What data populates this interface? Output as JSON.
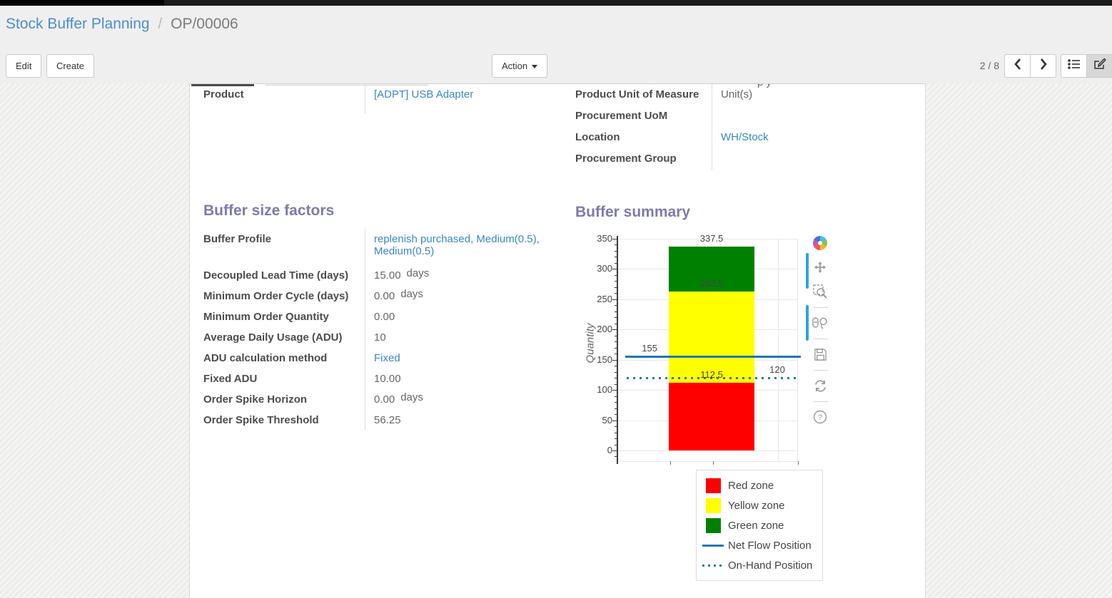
{
  "breadcrumb": {
    "parent": "Stock Buffer Planning",
    "separator": "/",
    "current": "OP/00006"
  },
  "toolbar": {
    "edit_label": "Edit",
    "create_label": "Create",
    "action_label": "Action"
  },
  "pager": {
    "text": "2 / 8",
    "prev_icon": "chevron-left-icon",
    "next_icon": "chevron-right-icon"
  },
  "view_switcher": {
    "list_icon": "list-view-icon",
    "form_icon": "form-view-icon",
    "active": "form"
  },
  "form": {
    "left_rows": [
      {
        "label": "Product",
        "value": "[ADPT] USB Adapter",
        "link": true
      }
    ],
    "right_rows": [
      {
        "label": "Product Unit of Measure",
        "value": "Unit(s)",
        "link": false
      },
      {
        "label": "Procurement UoM",
        "value": "",
        "link": false
      },
      {
        "label": "Location",
        "value": "WH/Stock",
        "link": true
      },
      {
        "label": "Procurement Group",
        "value": "",
        "link": false
      }
    ],
    "factors": {
      "heading": "Buffer size factors",
      "rows": [
        {
          "label": "Buffer Profile",
          "value": "replenish purchased, Medium(0.5), Medium(0.5)",
          "link": true
        },
        {
          "label": "Decoupled Lead Time (days)",
          "value": "15.00",
          "suffix": "days"
        },
        {
          "label": "Minimum Order Cycle (days)",
          "value": "0.00",
          "suffix": "days"
        },
        {
          "label": "Minimum Order Quantity",
          "value": "0.00"
        },
        {
          "label": "Average Daily Usage (ADU)",
          "value": "10"
        },
        {
          "label": "ADU calculation method",
          "value": "Fixed",
          "link": true
        },
        {
          "label": "Fixed ADU",
          "value": "10.00"
        },
        {
          "label": "Order Spike Horizon",
          "value": "0.00",
          "suffix": "days"
        },
        {
          "label": "Order Spike Threshold",
          "value": "56.25"
        }
      ]
    },
    "summary_heading": "Buffer summary"
  },
  "chart_data": {
    "type": "bar",
    "title": "Buffer summary",
    "xlabel": "",
    "ylabel": "Quantity",
    "ylim": [
      0,
      350
    ],
    "yticks": [
      0,
      50,
      100,
      150,
      200,
      250,
      300,
      350
    ],
    "minor_tick_step": 10,
    "grid": true,
    "stacked": true,
    "categories": [
      ""
    ],
    "series": [
      {
        "name": "Red zone",
        "color": "#ff0000",
        "values": [
          112.5
        ]
      },
      {
        "name": "Yellow zone",
        "color": "#ffff00",
        "values": [
          150
        ]
      },
      {
        "name": "Green zone",
        "color": "#008000",
        "values": [
          75
        ]
      }
    ],
    "cumulative_boundaries": [
      112.5,
      262.5,
      337.5
    ],
    "lines": [
      {
        "name": "Net Flow Position",
        "y": 155,
        "style": "solid",
        "color": "#1f77b4"
      },
      {
        "name": "On-Hand Position",
        "y": 120,
        "style": "dotted",
        "color": "#1f77b4"
      }
    ],
    "annotations": [
      {
        "text": "337.5",
        "y": 337.5,
        "xf": 0.52
      },
      {
        "text": "262.5",
        "y": 262.5,
        "xf": 0.52
      },
      {
        "text": "112.5",
        "y": 112.5,
        "xf": 0.52
      },
      {
        "text": "155",
        "y": 155,
        "xf": 0.175
      },
      {
        "text": "120",
        "y": 120,
        "xf": 0.885
      }
    ],
    "legend_position": "bottom-right",
    "legend_items": [
      {
        "name": "Red zone",
        "swatch": "square",
        "color": "#ff0000"
      },
      {
        "name": "Yellow zone",
        "swatch": "square",
        "color": "#ffff00"
      },
      {
        "name": "Green zone",
        "swatch": "square",
        "color": "#008000"
      },
      {
        "name": "Net Flow Position",
        "swatch": "line",
        "color": "#1f77b4"
      },
      {
        "name": "On-Hand Position",
        "swatch": "dotted-line",
        "color": "#1f77b4"
      }
    ],
    "modebar_icons": [
      "plotly-logo",
      "pan",
      "zoom",
      "lasso-select",
      "save",
      "reset-axes",
      "help"
    ]
  },
  "colors": {
    "link": "#3a87c8",
    "section_heading": "#7c7bad",
    "breadcrumb_link": "#4c8fcb"
  }
}
